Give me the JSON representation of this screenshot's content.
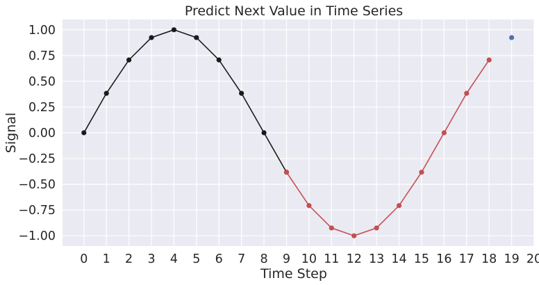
{
  "chart_data": {
    "type": "line",
    "title": "Predict Next Value in Time Series",
    "xlabel": "Time Step",
    "ylabel": "Signal",
    "xlim": [
      -0.95,
      20
    ],
    "ylim": [
      -1.1,
      1.1
    ],
    "x_ticks": [
      0,
      1,
      2,
      3,
      4,
      5,
      6,
      7,
      8,
      9,
      10,
      11,
      12,
      13,
      14,
      15,
      16,
      17,
      18,
      19,
      20
    ],
    "y_ticks": [
      1.0,
      0.75,
      0.5,
      0.25,
      0.0,
      -0.25,
      -0.5,
      -0.75,
      -1.0
    ],
    "y_tick_labels": [
      "1.00",
      "0.75",
      "0.50",
      "0.25",
      "0.00",
      "−0.25",
      "−0.50",
      "−0.75",
      "−1.00"
    ],
    "grid": true,
    "background": "#eaeaf2",
    "series": [
      {
        "color": "#1a1a1a",
        "x": [
          0,
          1,
          2,
          3,
          4,
          5,
          6,
          7,
          8,
          9
        ],
        "values": [
          0.0,
          0.383,
          0.707,
          0.924,
          1.0,
          0.924,
          0.707,
          0.383,
          0.0,
          -0.383
        ]
      },
      {
        "color": "#c44e52",
        "x": [
          9,
          10,
          11,
          12,
          13,
          14,
          15,
          16,
          17,
          18
        ],
        "values": [
          -0.383,
          -0.707,
          -0.924,
          -1.0,
          -0.924,
          -0.707,
          -0.383,
          0.0,
          0.383,
          0.707
        ]
      },
      {
        "color": "#4c72b0",
        "markers_only": true,
        "x": [
          19
        ],
        "values": [
          0.924
        ]
      }
    ]
  }
}
